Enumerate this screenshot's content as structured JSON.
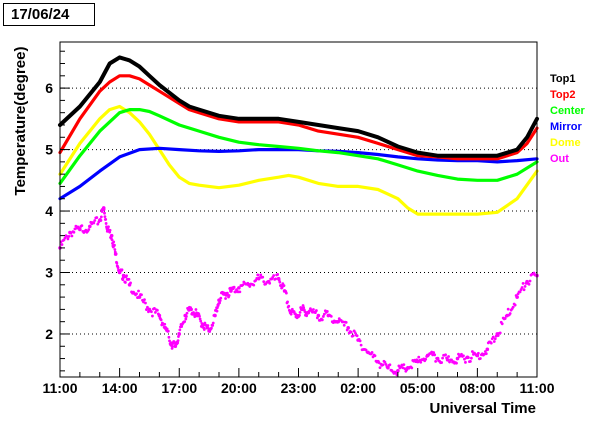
{
  "date_label": "17/06/24",
  "chart_data": {
    "type": "line",
    "xlabel": "Universal Time",
    "ylabel": "Temperature(degree)",
    "x_ticks": [
      "11:00",
      "14:00",
      "17:00",
      "20:00",
      "23:00",
      "02:00",
      "05:00",
      "08:00",
      "11:00"
    ],
    "x_tick_hours": [
      0,
      3,
      6,
      9,
      12,
      15,
      18,
      21,
      24
    ],
    "xlim": [
      0,
      24
    ],
    "y_ticks": [
      2,
      3,
      4,
      5,
      6
    ],
    "ylim": [
      1.3,
      6.75
    ],
    "grid": "horizontal dotted",
    "legend_placement": "right",
    "series": [
      {
        "name": "Top1",
        "color": "#000000",
        "style": "noisy-line",
        "x": [
          0,
          1,
          2,
          2.5,
          3,
          3.5,
          4,
          4.5,
          5,
          6,
          6.5,
          7,
          8,
          9,
          10,
          11,
          12,
          13,
          14,
          15,
          16,
          17,
          18,
          19,
          20,
          21,
          22,
          23,
          23.5,
          24
        ],
        "values": [
          5.4,
          5.7,
          6.1,
          6.4,
          6.5,
          6.45,
          6.35,
          6.2,
          6.05,
          5.8,
          5.7,
          5.65,
          5.55,
          5.5,
          5.5,
          5.5,
          5.45,
          5.4,
          5.35,
          5.3,
          5.2,
          5.05,
          4.95,
          4.9,
          4.9,
          4.9,
          4.9,
          5.0,
          5.2,
          5.5
        ]
      },
      {
        "name": "Top2",
        "color": "#ff0000",
        "style": "line",
        "x": [
          0,
          1,
          2,
          2.5,
          3,
          3.5,
          4,
          4.5,
          5,
          6,
          6.5,
          7,
          8,
          9,
          10,
          11,
          12,
          13,
          14,
          15,
          16,
          17,
          18,
          19,
          20,
          21,
          22,
          23,
          23.5,
          24
        ],
        "values": [
          4.95,
          5.5,
          5.95,
          6.1,
          6.2,
          6.2,
          6.15,
          6.05,
          5.95,
          5.75,
          5.65,
          5.6,
          5.5,
          5.45,
          5.45,
          5.45,
          5.4,
          5.3,
          5.25,
          5.2,
          5.1,
          5.0,
          4.9,
          4.88,
          4.85,
          4.85,
          4.85,
          4.95,
          5.1,
          5.35
        ]
      },
      {
        "name": "Center",
        "color": "#00ff00",
        "style": "line",
        "x": [
          0,
          1,
          2,
          3,
          3.5,
          4,
          4.5,
          5,
          6,
          7,
          8,
          9,
          10,
          11,
          12,
          13,
          14,
          15,
          16,
          17,
          18,
          19,
          20,
          21,
          22,
          23,
          24
        ],
        "values": [
          4.45,
          4.9,
          5.3,
          5.6,
          5.65,
          5.65,
          5.62,
          5.55,
          5.4,
          5.3,
          5.2,
          5.12,
          5.08,
          5.05,
          5.02,
          4.98,
          4.95,
          4.9,
          4.85,
          4.75,
          4.65,
          4.58,
          4.52,
          4.5,
          4.5,
          4.6,
          4.8
        ]
      },
      {
        "name": "Mirror",
        "color": "#0000ff",
        "style": "line",
        "x": [
          0,
          1,
          2,
          3,
          4,
          5,
          6,
          7,
          8,
          9,
          10,
          11,
          12,
          13,
          14,
          15,
          16,
          17,
          18,
          19,
          20,
          21,
          22,
          23,
          24
        ],
        "values": [
          4.2,
          4.4,
          4.65,
          4.88,
          5.0,
          5.02,
          5.0,
          4.98,
          4.97,
          4.98,
          5.0,
          5.0,
          5.0,
          4.98,
          4.97,
          4.95,
          4.92,
          4.88,
          4.85,
          4.83,
          4.82,
          4.82,
          4.8,
          4.82,
          4.85
        ]
      },
      {
        "name": "Dome",
        "color": "#ffff00",
        "style": "line",
        "x": [
          0,
          1,
          2,
          2.5,
          3,
          3.5,
          4,
          4.5,
          5,
          5.5,
          6,
          6.5,
          7,
          8,
          9,
          10,
          11,
          11.5,
          12,
          13,
          14,
          15,
          16,
          17,
          17.5,
          18,
          19,
          20,
          21,
          22,
          23,
          24
        ],
        "values": [
          4.6,
          5.1,
          5.5,
          5.65,
          5.7,
          5.6,
          5.45,
          5.25,
          5.0,
          4.75,
          4.55,
          4.45,
          4.42,
          4.38,
          4.42,
          4.5,
          4.55,
          4.58,
          4.55,
          4.45,
          4.4,
          4.4,
          4.35,
          4.2,
          4.05,
          3.95,
          3.95,
          3.95,
          3.95,
          3.98,
          4.2,
          4.65
        ]
      },
      {
        "name": "Out",
        "color": "#ff00ff",
        "style": "scatter",
        "x": [
          0,
          0.5,
          1,
          1.5,
          2,
          2.2,
          2.4,
          2.6,
          2.8,
          3,
          3.2,
          3.5,
          4,
          4.5,
          5,
          5.3,
          5.6,
          5.8,
          6,
          6.3,
          6.6,
          6.9,
          7.2,
          7.5,
          7.8,
          8,
          8.3,
          8.6,
          9,
          9.5,
          10,
          10.5,
          11,
          11.3,
          11.6,
          11.9,
          12.2,
          12.5,
          13,
          13.5,
          14,
          14.5,
          15,
          15.5,
          16,
          16.5,
          17,
          17.5,
          18,
          18.5,
          19,
          19.5,
          20,
          20.5,
          21,
          21.5,
          22,
          22.5,
          23,
          23.5,
          24
        ],
        "values": [
          3.4,
          3.65,
          3.7,
          3.75,
          3.85,
          4.05,
          3.7,
          3.6,
          3.3,
          3.0,
          2.95,
          2.8,
          2.6,
          2.4,
          2.3,
          2.1,
          1.85,
          1.8,
          2.0,
          2.3,
          2.4,
          2.3,
          2.15,
          2.05,
          2.3,
          2.55,
          2.65,
          2.7,
          2.75,
          2.8,
          2.9,
          2.85,
          2.9,
          2.7,
          2.35,
          2.3,
          2.4,
          2.35,
          2.3,
          2.3,
          2.2,
          2.1,
          1.9,
          1.7,
          1.55,
          1.45,
          1.4,
          1.45,
          1.55,
          1.65,
          1.6,
          1.58,
          1.6,
          1.62,
          1.65,
          1.75,
          2.0,
          2.3,
          2.6,
          2.85,
          2.95
        ]
      }
    ]
  }
}
